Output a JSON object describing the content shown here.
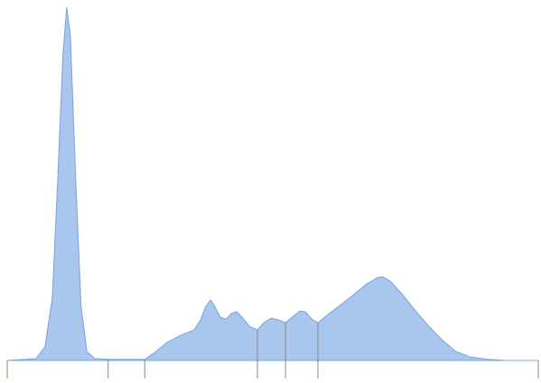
{
  "chart_data": {
    "type": "area",
    "color": "#a9c6ec",
    "edge_color": "#7aa3db",
    "x": [
      0,
      5.4,
      7.1,
      8.5,
      9.5,
      10.5,
      11.2,
      11.9,
      12.9,
      13.9,
      15.0,
      16.5,
      19.0,
      25.9,
      27.6,
      30.1,
      32.7,
      35.2,
      36.4,
      37.4,
      38.3,
      39.1,
      40.1,
      41.2,
      42.2,
      43.2,
      44.2,
      45.6,
      47.1,
      48.3,
      49.7,
      51.0,
      52.4,
      53.7,
      55.1,
      56.1,
      57.5,
      58.5,
      60.2,
      62.4,
      65.0,
      67.5,
      69.7,
      70.7,
      72.1,
      74.3,
      76.9,
      79.4,
      82.0,
      84.5,
      87.1,
      90.5,
      93.9,
      100
    ],
    "values": [
      0,
      0.5,
      3.8,
      17.7,
      50.6,
      86.1,
      99.2,
      91.1,
      50.6,
      15.2,
      2.5,
      0.5,
      0.3,
      0.3,
      2.0,
      5.1,
      7.1,
      8.6,
      11.4,
      15.2,
      17.0,
      15.2,
      12.2,
      11.6,
      13.2,
      13.7,
      12.2,
      9.6,
      8.6,
      10.6,
      11.9,
      11.4,
      10.6,
      12.2,
      13.9,
      13.7,
      11.4,
      10.6,
      12.7,
      15.2,
      18.2,
      21.3,
      23.3,
      23.5,
      22.3,
      18.7,
      13.9,
      9.6,
      5.6,
      2.5,
      1.0,
      0.3,
      0,
      0
    ],
    "xlim": [
      0,
      100
    ],
    "ylim": [
      0,
      100
    ],
    "xticks": [
      0,
      19.0,
      25.9,
      47.1,
      52.4,
      58.5,
      100
    ]
  }
}
